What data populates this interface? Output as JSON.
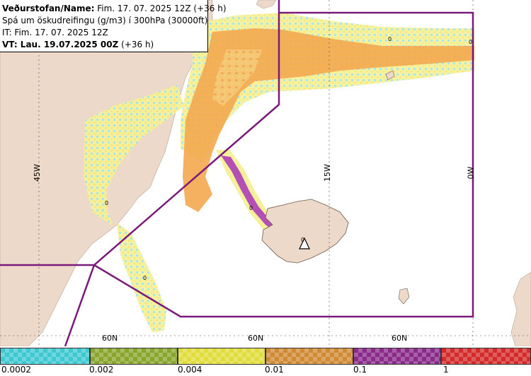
{
  "header": {
    "title_bold": "Veðurstofan/Name:",
    "title_rest": " Fim. 17. 07. 2025 12Z (+36 h)",
    "line2": "Spá um öskudreifingu (g/m3) í 300hPa (30000ft)",
    "line3": "IT: Fim. 17. 07. 2025 12Z",
    "line4_bold": "VT: Lau. 19.07.2025 00Z",
    "line4_rest": " (+36 h)"
  },
  "grid_labels": {
    "lon": [
      "45W",
      "15W",
      "0W"
    ],
    "lat": [
      "60N",
      "60N",
      "60N"
    ]
  },
  "contour_labels": [
    "0",
    "0",
    "0",
    "0",
    "0",
    "0"
  ],
  "legend": {
    "ticks": [
      "0.0002",
      "0.002",
      "0.004",
      "0.01",
      "0.1",
      "1"
    ],
    "bins": [
      {
        "color": "#3ec8d0"
      },
      {
        "color": "#8aa52b"
      },
      {
        "color": "#e0dc3a"
      },
      {
        "color": "#d08a33"
      },
      {
        "color": "#8a2b8a"
      },
      {
        "color": "#d42a2a"
      }
    ]
  },
  "colors": {
    "land": "#ecd9c9",
    "sea": "#ffffff",
    "fir_boundary": "#7a1a7a",
    "ash_low": "#f5f09a",
    "ash_mid": "#f4a94e",
    "ash_high": "#b54fb5"
  },
  "volcano_marker": "triangle-icon"
}
